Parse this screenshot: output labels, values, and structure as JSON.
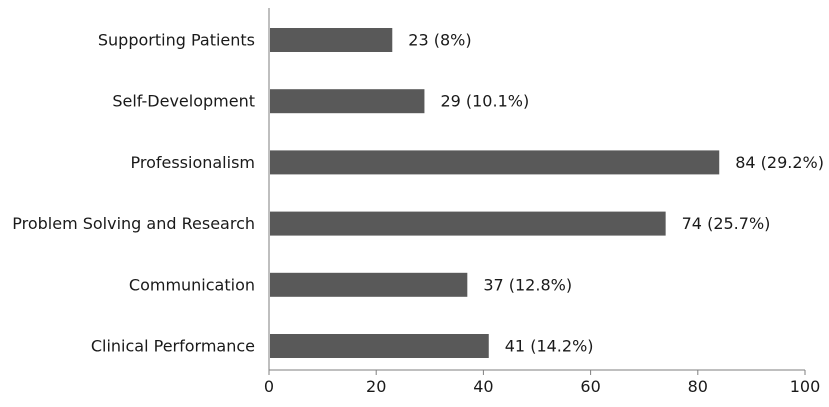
{
  "chart_data": {
    "type": "bar",
    "orientation": "horizontal",
    "title": "",
    "xlabel": "",
    "ylabel": "",
    "categories": [
      "Supporting Patients",
      "Self-Development",
      "Professionalism",
      "Problem Solving and Research",
      "Communication",
      "Clinical Performance"
    ],
    "values": [
      23,
      29,
      84,
      74,
      37,
      41
    ],
    "data_labels": [
      "23 (8%)",
      "29 (10.1%)",
      "84 (29.2%)",
      "74 (25.7%)",
      "37 (12.8%)",
      "41 (14.2%)"
    ],
    "xlim": [
      0,
      100
    ],
    "xticks": [
      0,
      20,
      40,
      60,
      80,
      100
    ],
    "xtick_labels": [
      "0",
      "20",
      "40",
      "60",
      "80",
      "100"
    ],
    "grid": false,
    "legend": "none",
    "bar_color": "#595959"
  }
}
